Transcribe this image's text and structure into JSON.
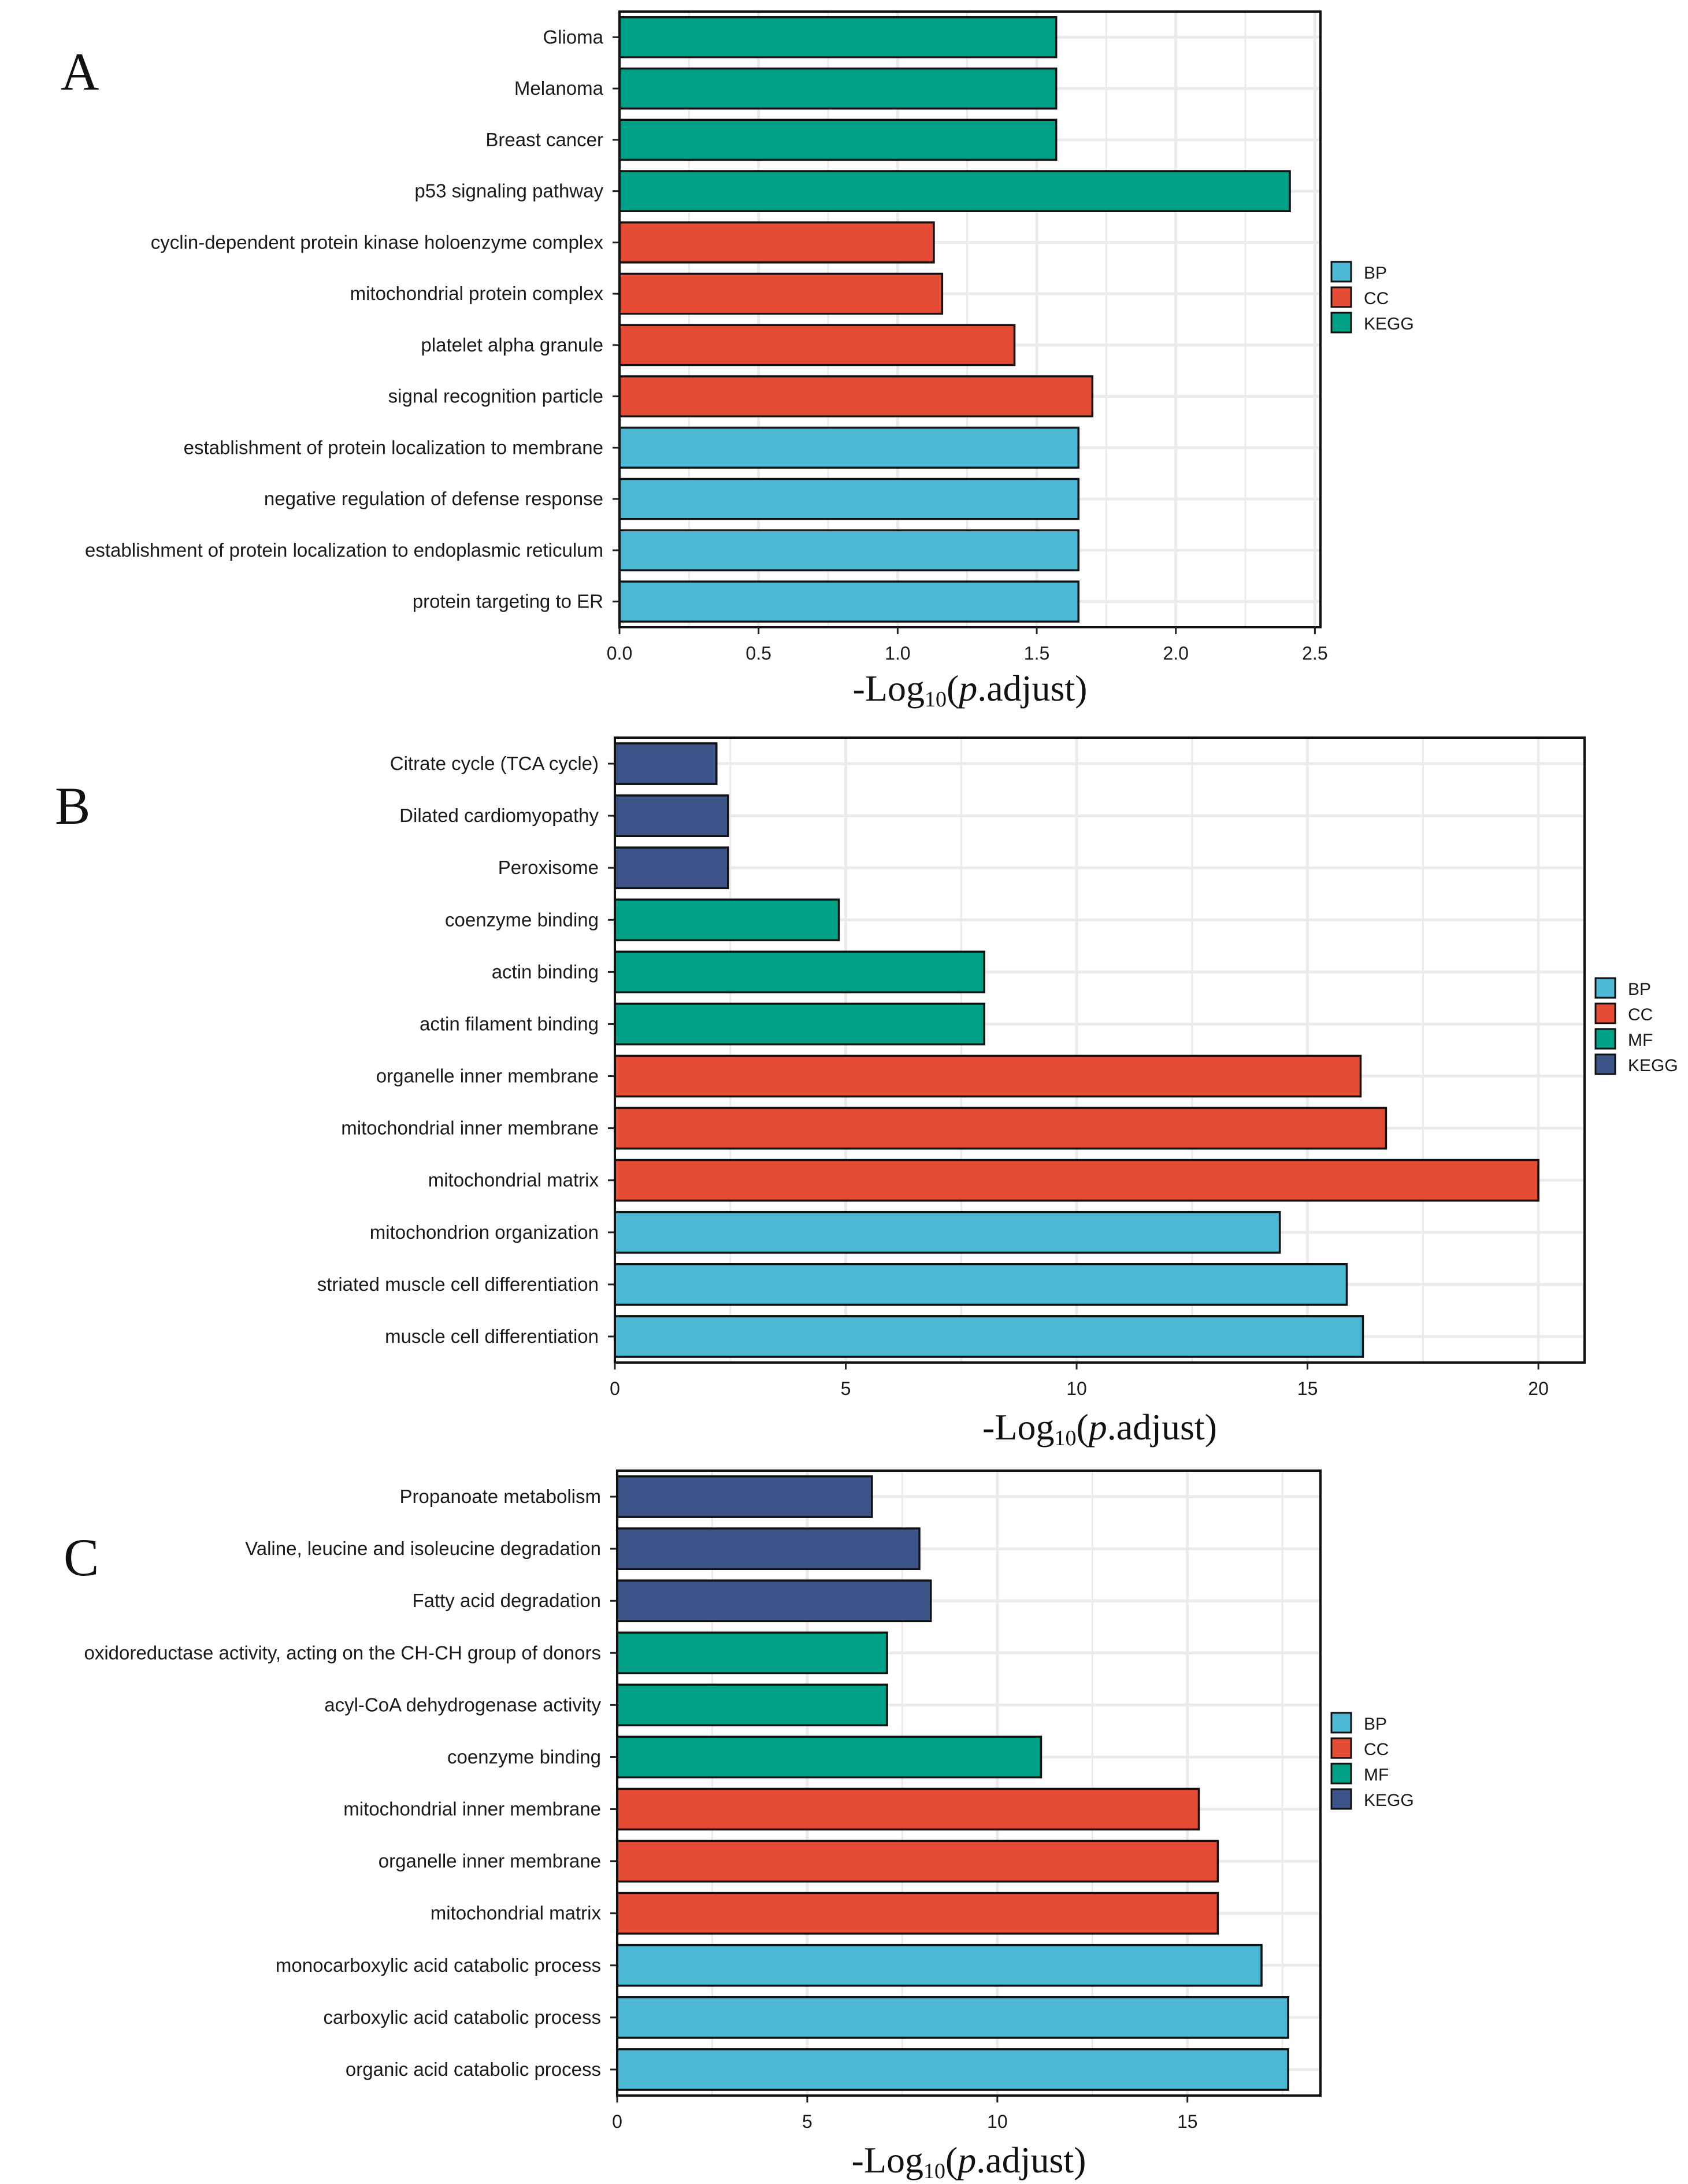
{
  "colors": {
    "BP": "#4DB8D4",
    "CC": "#E64B35",
    "MF": "#00A087",
    "KEGG_A": "#00A087",
    "KEGG": "#3C5488",
    "grid": "#ebebeb",
    "frame": "#111111"
  },
  "chart_data": [
    {
      "type": "bar",
      "orientation": "horizontal",
      "panel": "A",
      "categories": [
        "Glioma",
        "Melanoma",
        "Breast cancer",
        "p53 signaling pathway",
        "cyclin-dependent protein kinase holoenzyme complex",
        "mitochondrial protein complex",
        "platelet alpha granule",
        "signal recognition particle",
        "establishment of protein localization to membrane",
        "negative regulation of defense response",
        "establishment of protein localization to endoplasmic reticulum",
        "protein targeting to ER"
      ],
      "values": [
        1.57,
        1.57,
        1.57,
        2.41,
        1.13,
        1.16,
        1.42,
        1.7,
        1.65,
        1.65,
        1.65,
        1.65
      ],
      "groups": [
        "KEGG",
        "KEGG",
        "KEGG",
        "KEGG",
        "CC",
        "CC",
        "CC",
        "CC",
        "BP",
        "BP",
        "BP",
        "BP"
      ],
      "legend": [
        "BP",
        "CC",
        "KEGG"
      ],
      "xlim": [
        0,
        2.52
      ],
      "xticks": [
        0,
        0.5,
        1,
        1.5,
        2,
        2.5
      ],
      "xtick_labels": [
        "0.0",
        "0.5",
        "1.0",
        "1.5",
        "2.0",
        "2.5"
      ],
      "xlabel": {
        "main": "-Log",
        "sub": "10",
        "paren_open": "(",
        "italic": "p",
        "rest": ".adjust)"
      }
    },
    {
      "type": "bar",
      "orientation": "horizontal",
      "panel": "B",
      "categories": [
        "Citrate cycle (TCA cycle)",
        "Dilated cardiomyopathy",
        "Peroxisome",
        "coenzyme binding",
        "actin binding",
        "actin filament binding",
        "organelle inner membrane",
        "mitochondrial inner membrane",
        "mitochondrial matrix",
        "mitochondrion organization",
        "striated muscle cell differentiation",
        "muscle cell differentiation"
      ],
      "values": [
        2.2,
        2.45,
        2.45,
        4.85,
        8.0,
        8.0,
        16.15,
        16.7,
        20.0,
        14.4,
        15.85,
        16.2
      ],
      "groups": [
        "KEGG",
        "KEGG",
        "KEGG",
        "MF",
        "MF",
        "MF",
        "CC",
        "CC",
        "CC",
        "BP",
        "BP",
        "BP"
      ],
      "legend": [
        "BP",
        "CC",
        "MF",
        "KEGG"
      ],
      "legend_display": [
        "BP",
        "CC",
        "MF",
        "KEGG"
      ],
      "xlim": [
        0,
        21
      ],
      "xticks": [
        0,
        5,
        10,
        15,
        20
      ],
      "xtick_labels": [
        "0",
        "5",
        "10",
        "15",
        "20"
      ],
      "xlabel": {
        "main": "-Log",
        "sub": "10",
        "paren_open": "(",
        "italic": "p",
        "rest": ".adjust)"
      }
    },
    {
      "type": "bar",
      "orientation": "horizontal",
      "panel": "C",
      "categories": [
        "Propanoate metabolism",
        "Valine, leucine and isoleucine degradation",
        "Fatty acid degradation",
        "oxidoreductase activity, acting on the CH-CH group of donors",
        "acyl-CoA dehydrogenase activity",
        "coenzyme binding",
        "mitochondrial inner membrane",
        "organelle inner membrane",
        "mitochondrial matrix",
        "monocarboxylic acid catabolic process",
        "carboxylic acid catabolic process",
        "organic acid catabolic process"
      ],
      "values": [
        6.7,
        7.95,
        8.25,
        7.1,
        7.1,
        11.15,
        15.3,
        15.8,
        15.8,
        16.95,
        17.65,
        17.65
      ],
      "groups": [
        "KEGG",
        "KEGG",
        "KEGG",
        "MF",
        "MF",
        "MF",
        "CC",
        "CC",
        "CC",
        "BP",
        "BP",
        "BP"
      ],
      "legend": [
        "BP",
        "CC",
        "MF",
        "KEGG"
      ],
      "xlim": [
        0,
        18.5
      ],
      "xticks": [
        0,
        5,
        10,
        15
      ],
      "xtick_labels": [
        "0",
        "5",
        "10",
        "15"
      ],
      "xlabel": {
        "main": "-Log",
        "sub": "10",
        "paren_open": "(",
        "italic": "p",
        "rest": ".adjust)"
      }
    }
  ]
}
